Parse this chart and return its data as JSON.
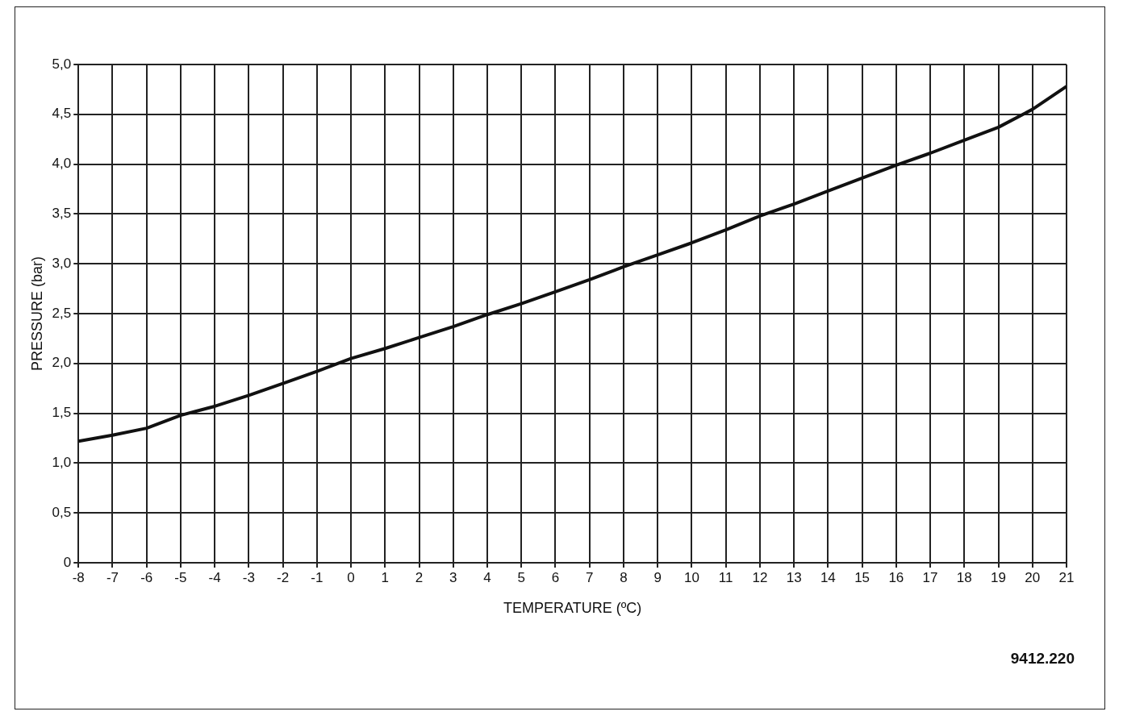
{
  "chart_data": {
    "type": "line",
    "xlabel": "TEMPERATURE (ºC)",
    "ylabel": "PRESSURE (bar)",
    "annotations": [
      "9412.220"
    ],
    "x": [
      -8,
      -7,
      -6,
      -5,
      -4,
      -3,
      -2,
      -1,
      0,
      1,
      2,
      3,
      4,
      5,
      6,
      7,
      8,
      9,
      10,
      11,
      12,
      13,
      14,
      15,
      16,
      17,
      18,
      19,
      20,
      21
    ],
    "series": [
      {
        "color": "#111111",
        "values": [
          1.22,
          1.28,
          1.35,
          1.48,
          1.57,
          1.68,
          1.8,
          1.92,
          2.05,
          2.15,
          2.26,
          2.37,
          2.49,
          2.6,
          2.72,
          2.84,
          2.97,
          3.09,
          3.21,
          3.34,
          3.48,
          3.6,
          3.73,
          3.86,
          3.99,
          4.11,
          4.24,
          4.37,
          4.55,
          4.78
        ]
      }
    ],
    "xlim": [
      -8,
      21
    ],
    "xticks": [
      -8,
      -7,
      -6,
      -5,
      -4,
      -3,
      -2,
      -1,
      0,
      1,
      2,
      3,
      4,
      5,
      6,
      7,
      8,
      9,
      10,
      11,
      12,
      13,
      14,
      15,
      16,
      17,
      18,
      19,
      20,
      21
    ],
    "ylim": [
      0,
      5
    ],
    "yticks": [
      0,
      {
        "value": 0.5,
        "label": "0,5"
      },
      {
        "value": 1,
        "label": "1,0"
      },
      {
        "value": 1.5,
        "label": "1,5"
      },
      {
        "value": 2,
        "label": "2,0"
      },
      {
        "value": 2.5,
        "label": "2,5"
      },
      {
        "value": 3,
        "label": "3,0"
      },
      {
        "value": 3.5,
        "label": "3,5"
      },
      {
        "value": 4,
        "label": "4,0"
      },
      {
        "value": 4.5,
        "label": "4,5"
      },
      {
        "value": 5,
        "label": "5,0"
      }
    ],
    "grid": true,
    "legend": false,
    "marker": "none",
    "line_style": "solid"
  }
}
